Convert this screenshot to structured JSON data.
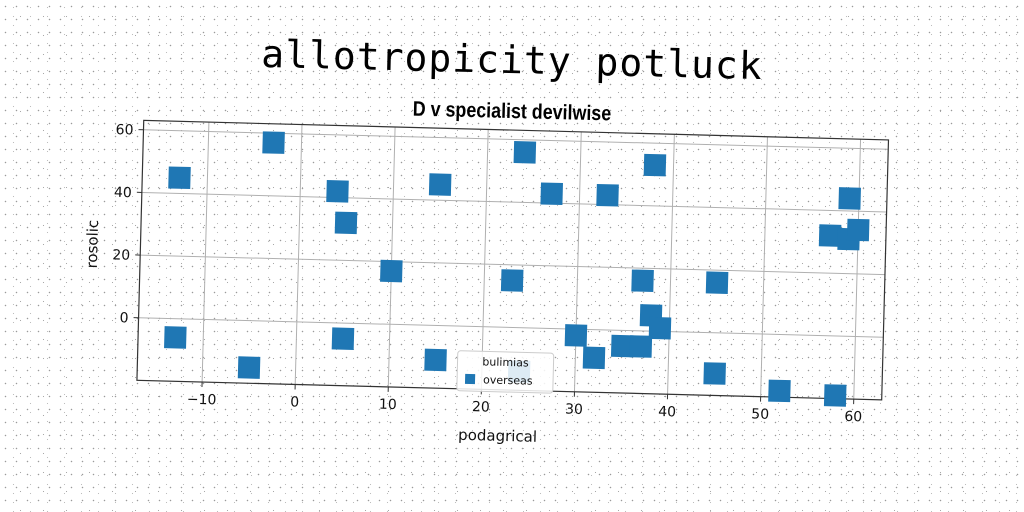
{
  "chart_data": {
    "type": "scatter",
    "title": "allotropicity potluck",
    "subtitle": "D v specialist devilwise",
    "xlabel": "podagrical",
    "ylabel": "rosolic",
    "xlim": [
      -17,
      63
    ],
    "ylim": [
      -20,
      63
    ],
    "xticks": [
      -10,
      0,
      10,
      20,
      30,
      40,
      50,
      60
    ],
    "yticks": [
      0,
      20,
      40,
      60
    ],
    "xtick_labels": [
      "−10",
      "0",
      "10",
      "20",
      "30",
      "40",
      "50",
      "60"
    ],
    "ytick_labels": [
      "0",
      "20",
      "40",
      "60"
    ],
    "grid": true,
    "legend": {
      "title": "bulimias",
      "placement": "bottom-center",
      "entries": [
        "overseas"
      ]
    },
    "series": [
      {
        "name": "overseas",
        "color": "#1f77b4",
        "marker": "square",
        "points": [
          [
            -13,
            45
          ],
          [
            -3,
            57
          ],
          [
            4,
            42
          ],
          [
            5,
            32
          ],
          [
            15,
            45
          ],
          [
            10,
            17
          ],
          [
            24,
            56
          ],
          [
            27,
            43
          ],
          [
            33,
            43
          ],
          [
            38,
            53
          ],
          [
            23,
            15
          ],
          [
            37,
            16
          ],
          [
            45,
            16
          ],
          [
            57,
            32
          ],
          [
            59,
            31
          ],
          [
            60,
            34
          ],
          [
            59,
            44
          ],
          [
            38,
            5
          ],
          [
            39,
            1
          ],
          [
            30,
            -2
          ],
          [
            32,
            -9
          ],
          [
            35,
            -5
          ],
          [
            37,
            -5
          ],
          [
            -13,
            -6
          ],
          [
            -5,
            -15
          ],
          [
            5,
            -5
          ],
          [
            15,
            -11
          ],
          [
            24,
            -14
          ],
          [
            45,
            -13
          ],
          [
            52,
            -18
          ],
          [
            58,
            -19
          ]
        ]
      }
    ]
  }
}
